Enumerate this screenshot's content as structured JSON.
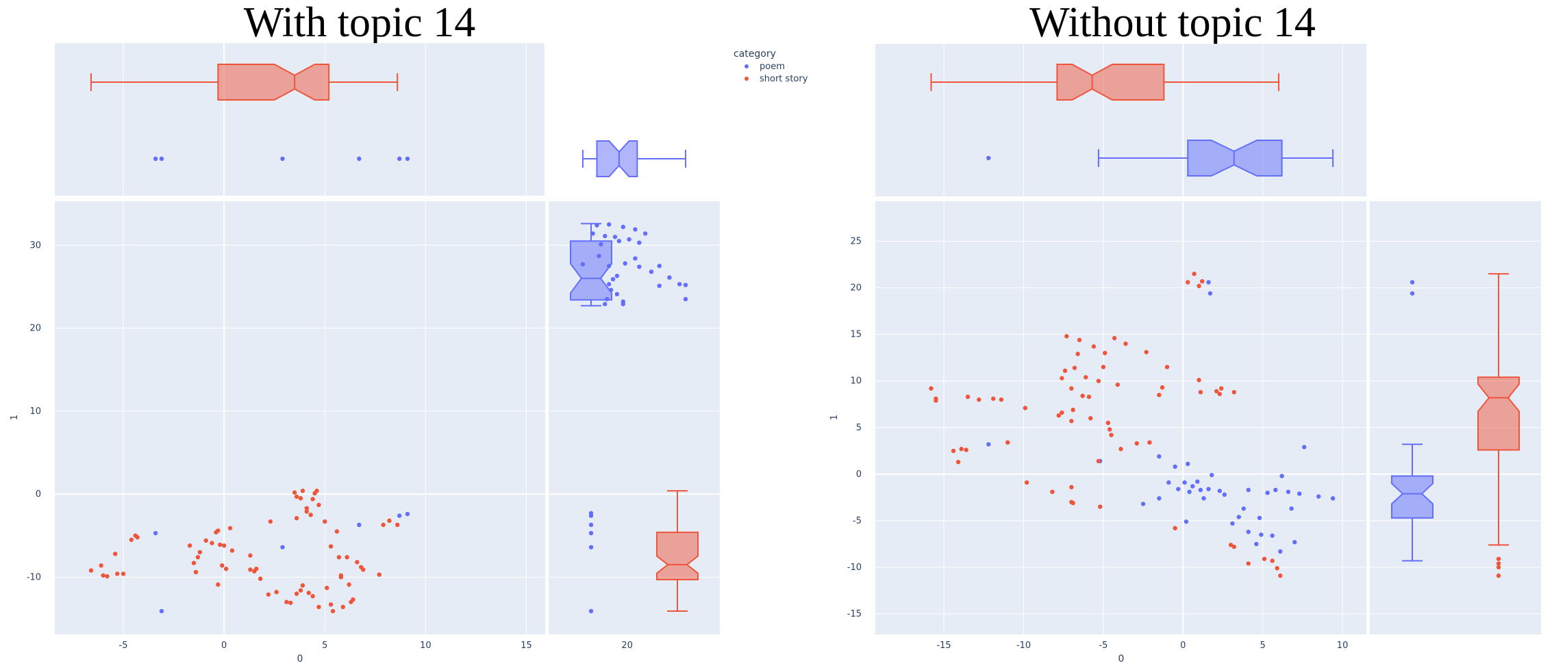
{
  "legend": {
    "title": "category",
    "items": [
      {
        "label": "poem",
        "color": "#636efa"
      },
      {
        "label": "short story",
        "color": "#ef553b"
      }
    ]
  },
  "colors": {
    "plot_bg": "#e5ecf6",
    "grid": "#ffffff",
    "poem": "#636efa",
    "short_story": "#ef553b"
  },
  "chart_data": [
    {
      "type": "scatter",
      "title": "With topic 14",
      "xlabel": "0",
      "ylabel": "1",
      "xlim": [
        -8.4,
        24.6
      ],
      "ylim": [
        -16.9,
        35.3
      ],
      "xticks": [
        -5,
        0,
        5,
        10,
        15,
        20
      ],
      "yticks": [
        -10,
        0,
        10,
        20,
        30
      ],
      "marginals": "box",
      "series": [
        {
          "name": "poem",
          "points": [
            [
              -3.4,
              -4.7
            ],
            [
              -3.1,
              -14.1
            ],
            [
              2.9,
              -6.4
            ],
            [
              6.7,
              -3.7
            ],
            [
              8.7,
              -2.6
            ],
            [
              9.1,
              -2.4
            ],
            [
              18.3,
              31.4
            ],
            [
              18.5,
              32.4
            ],
            [
              18.7,
              30.1
            ],
            [
              18.9,
              31.1
            ],
            [
              19.1,
              32.5
            ],
            [
              19.4,
              31.0
            ],
            [
              19.6,
              30.5
            ],
            [
              19.8,
              32.2
            ],
            [
              20.1,
              30.7
            ],
            [
              20.4,
              31.9
            ],
            [
              20.6,
              30.3
            ],
            [
              20.9,
              31.4
            ],
            [
              17.8,
              27.7
            ],
            [
              18.6,
              28.7
            ],
            [
              19.1,
              27.5
            ],
            [
              19.9,
              27.8
            ],
            [
              20.4,
              28.4
            ],
            [
              20.6,
              27.4
            ],
            [
              21.2,
              26.8
            ],
            [
              21.6,
              25.1
            ],
            [
              21.6,
              27.5
            ],
            [
              22.1,
              26.1
            ],
            [
              22.6,
              25.3
            ],
            [
              22.9,
              25.2
            ],
            [
              22.9,
              23.5
            ],
            [
              19.1,
              25.3
            ],
            [
              19.3,
              25.9
            ],
            [
              19.5,
              26.3
            ],
            [
              19.2,
              24.6
            ],
            [
              19.0,
              23.5
            ],
            [
              19.5,
              24.1
            ],
            [
              18.9,
              22.9
            ],
            [
              19.8,
              23.2
            ],
            [
              19.8,
              22.9
            ]
          ],
          "box": {
            "min": 17.8,
            "q1": 18.5,
            "median": 19.6,
            "q3": 20.5,
            "max": 22.9,
            "outliers": [
              -3.4,
              -3.1,
              2.9,
              6.7,
              8.7,
              9.1
            ]
          },
          "box_y": {
            "min": 22.7,
            "q1": 23.4,
            "median": 26.0,
            "q3": 30.5,
            "max": 32.6,
            "outliers": [
              -2.3,
              -2.6,
              -3.7,
              -4.7,
              -6.4,
              -14.1
            ]
          }
        },
        {
          "name": "short story",
          "points": [
            [
              -6.6,
              -9.2
            ],
            [
              -6.1,
              -8.6
            ],
            [
              -6.0,
              -9.8
            ],
            [
              -5.8,
              -9.9
            ],
            [
              -5.4,
              -7.2
            ],
            [
              -5.3,
              -9.6
            ],
            [
              -5.0,
              -9.6
            ],
            [
              -4.6,
              -5.5
            ],
            [
              -4.4,
              -5.0
            ],
            [
              -4.3,
              -5.2
            ],
            [
              -1.7,
              -6.2
            ],
            [
              -1.5,
              -8.3
            ],
            [
              -1.4,
              -9.4
            ],
            [
              -1.3,
              -7.6
            ],
            [
              -1.2,
              -7.0
            ],
            [
              -0.9,
              -5.6
            ],
            [
              -0.6,
              -5.9
            ],
            [
              -0.4,
              -4.6
            ],
            [
              -0.3,
              -4.4
            ],
            [
              -0.2,
              -6.1
            ],
            [
              0.0,
              -6.2
            ],
            [
              -0.1,
              -8.6
            ],
            [
              0.1,
              -9.0
            ],
            [
              -0.3,
              -10.9
            ],
            [
              0.3,
              -4.1
            ],
            [
              0.4,
              -6.8
            ],
            [
              1.3,
              -7.4
            ],
            [
              1.3,
              -9.1
            ],
            [
              1.5,
              -9.3
            ],
            [
              1.6,
              -9.0
            ],
            [
              1.8,
              -10.2
            ],
            [
              2.2,
              -12.1
            ],
            [
              2.3,
              -3.3
            ],
            [
              2.6,
              -11.8
            ],
            [
              3.1,
              -13.0
            ],
            [
              3.3,
              -13.1
            ],
            [
              3.6,
              -2.9
            ],
            [
              3.6,
              -12.0
            ],
            [
              3.8,
              -11.6
            ],
            [
              3.9,
              -11.0
            ],
            [
              4.1,
              -2.1
            ],
            [
              4.2,
              -11.9
            ],
            [
              4.3,
              -2.5
            ],
            [
              4.4,
              -12.3
            ],
            [
              4.7,
              -13.6
            ],
            [
              3.5,
              0.2
            ],
            [
              3.6,
              -0.3
            ],
            [
              3.8,
              -0.5
            ],
            [
              3.9,
              0.4
            ],
            [
              4.1,
              -1.7
            ],
            [
              4.4,
              -0.6
            ],
            [
              4.5,
              0.1
            ],
            [
              4.6,
              0.4
            ],
            [
              4.7,
              -1.3
            ],
            [
              5.0,
              -3.3
            ],
            [
              5.1,
              -11.3
            ],
            [
              5.3,
              -6.3
            ],
            [
              5.3,
              -13.3
            ],
            [
              5.4,
              -14.1
            ],
            [
              5.7,
              -7.6
            ],
            [
              5.8,
              -9.8
            ],
            [
              5.8,
              -10.0
            ],
            [
              5.9,
              -13.6
            ],
            [
              5.6,
              -4.5
            ],
            [
              6.1,
              -7.6
            ],
            [
              6.2,
              -10.9
            ],
            [
              6.3,
              -13.0
            ],
            [
              6.4,
              -12.7
            ],
            [
              6.6,
              -8.2
            ],
            [
              6.8,
              -8.8
            ],
            [
              6.9,
              -9.1
            ],
            [
              7.7,
              -9.7
            ],
            [
              7.9,
              -3.7
            ],
            [
              8.2,
              -3.2
            ],
            [
              8.6,
              -3.7
            ]
          ],
          "box": {
            "min": -6.6,
            "q1": -0.3,
            "median": 3.5,
            "q3": 5.2,
            "max": 8.6
          },
          "box_y": {
            "min": -14.1,
            "q1": -10.3,
            "median": -8.5,
            "q3": -4.6,
            "max": 0.4
          }
        }
      ]
    },
    {
      "type": "scatter",
      "title": "Without topic 14",
      "xlabel": "0",
      "ylabel": "1",
      "xlim": [
        -19.3,
        11.5
      ],
      "ylim": [
        -17.2,
        29.3
      ],
      "xticks": [
        -15,
        -10,
        -5,
        0,
        5,
        10
      ],
      "yticks": [
        -15,
        -10,
        -5,
        0,
        5,
        10,
        15,
        20,
        25
      ],
      "marginals": "box",
      "series": [
        {
          "name": "poem",
          "points": [
            [
              -12.2,
              3.2
            ],
            [
              -5.2,
              1.4
            ],
            [
              -1.5,
              1.9
            ],
            [
              -0.9,
              -0.9
            ],
            [
              -0.5,
              0.8
            ],
            [
              -0.3,
              -1.6
            ],
            [
              0.1,
              -0.9
            ],
            [
              0.3,
              1.1
            ],
            [
              0.4,
              -1.9
            ],
            [
              0.6,
              -1.3
            ],
            [
              0.9,
              -0.8
            ],
            [
              1.1,
              -1.7
            ],
            [
              1.3,
              -2.6
            ],
            [
              1.6,
              -1.6
            ],
            [
              1.8,
              -0.1
            ],
            [
              2.3,
              -1.8
            ],
            [
              2.6,
              -2.2
            ],
            [
              3.1,
              -5.3
            ],
            [
              3.5,
              -4.6
            ],
            [
              3.8,
              -3.7
            ],
            [
              4.1,
              -6.2
            ],
            [
              4.1,
              -1.7
            ],
            [
              4.6,
              -7.5
            ],
            [
              4.8,
              -4.7
            ],
            [
              4.9,
              -6.5
            ],
            [
              5.3,
              -2.0
            ],
            [
              5.6,
              -6.6
            ],
            [
              5.8,
              -1.7
            ],
            [
              6.1,
              -8.3
            ],
            [
              6.2,
              -0.2
            ],
            [
              6.6,
              -1.9
            ],
            [
              6.8,
              -3.7
            ],
            [
              7.0,
              -7.3
            ],
            [
              7.3,
              -2.1
            ],
            [
              7.6,
              2.9
            ],
            [
              8.5,
              -2.4
            ],
            [
              9.4,
              -2.6
            ],
            [
              0.2,
              -5.1
            ],
            [
              -2.5,
              -3.2
            ],
            [
              -1.5,
              -2.6
            ],
            [
              1.6,
              20.6
            ],
            [
              1.7,
              19.4
            ]
          ],
          "box": {
            "min": -5.3,
            "q1": 0.3,
            "median": 3.2,
            "q3": 6.2,
            "max": 9.4,
            "outliers": [
              -12.2
            ]
          },
          "box_y": {
            "min": -9.3,
            "q1": -4.7,
            "median": -2.1,
            "q3": -0.2,
            "max": 3.2,
            "outliers": [
              19.4,
              20.6
            ]
          }
        },
        {
          "name": "short story",
          "points": [
            [
              -15.8,
              9.2
            ],
            [
              -15.5,
              8.1
            ],
            [
              -15.5,
              7.9
            ],
            [
              -14.4,
              2.5
            ],
            [
              -14.1,
              1.3
            ],
            [
              -13.9,
              2.7
            ],
            [
              -13.6,
              2.6
            ],
            [
              -13.5,
              8.3
            ],
            [
              -12.8,
              8.0
            ],
            [
              -11.9,
              8.1
            ],
            [
              -11.4,
              8.0
            ],
            [
              -11.0,
              3.4
            ],
            [
              -9.9,
              7.1
            ],
            [
              -9.8,
              -0.9
            ],
            [
              -8.2,
              -1.9
            ],
            [
              -7.8,
              6.3
            ],
            [
              -7.6,
              6.6
            ],
            [
              -7.6,
              10.3
            ],
            [
              -7.4,
              11.1
            ],
            [
              -7.3,
              14.8
            ],
            [
              -7.0,
              9.2
            ],
            [
              -7.0,
              5.7
            ],
            [
              -6.9,
              6.9
            ],
            [
              -6.8,
              11.4
            ],
            [
              -6.6,
              12.9
            ],
            [
              -6.5,
              14.4
            ],
            [
              -6.3,
              8.4
            ],
            [
              -6.1,
              10.4
            ],
            [
              -5.9,
              8.3
            ],
            [
              -5.8,
              6.0
            ],
            [
              -5.6,
              13.7
            ],
            [
              -5.3,
              10.0
            ],
            [
              -5.3,
              1.4
            ],
            [
              -5.0,
              11.5
            ],
            [
              -4.9,
              13.0
            ],
            [
              -4.7,
              5.5
            ],
            [
              -4.6,
              4.8
            ],
            [
              -4.5,
              4.2
            ],
            [
              -4.3,
              14.6
            ],
            [
              -4.1,
              9.6
            ],
            [
              -3.9,
              2.7
            ],
            [
              -3.6,
              14.0
            ],
            [
              -2.9,
              3.3
            ],
            [
              -2.3,
              13.1
            ],
            [
              -2.1,
              3.4
            ],
            [
              -1.5,
              8.5
            ],
            [
              -1.3,
              9.3
            ],
            [
              -1.0,
              11.5
            ],
            [
              0.3,
              20.6
            ],
            [
              0.7,
              21.5
            ],
            [
              1.0,
              20.2
            ],
            [
              1.2,
              20.7
            ],
            [
              1.0,
              10.1
            ],
            [
              1.1,
              8.8
            ],
            [
              2.1,
              8.9
            ],
            [
              2.4,
              9.2
            ],
            [
              2.3,
              8.6
            ],
            [
              3.2,
              8.8
            ],
            [
              -0.5,
              -5.8
            ],
            [
              -5.2,
              -3.5
            ],
            [
              -6.9,
              -3.1
            ],
            [
              -7.0,
              -3.0
            ],
            [
              -7.0,
              -1.4
            ],
            [
              3.0,
              -7.6
            ],
            [
              3.2,
              -7.8
            ],
            [
              4.1,
              -9.6
            ],
            [
              5.1,
              -9.1
            ],
            [
              5.6,
              -9.3
            ],
            [
              5.9,
              -10.1
            ],
            [
              6.1,
              -10.9
            ]
          ],
          "box": {
            "min": -15.8,
            "q1": -7.9,
            "median": -5.7,
            "q3": -1.2,
            "max": 6.0
          },
          "box_y": {
            "min": -7.6,
            "q1": 2.6,
            "median": 8.2,
            "q3": 10.4,
            "max": 21.5,
            "outliers": [
              -9.1,
              -9.6,
              -10.0,
              -10.9
            ]
          }
        }
      ]
    }
  ]
}
